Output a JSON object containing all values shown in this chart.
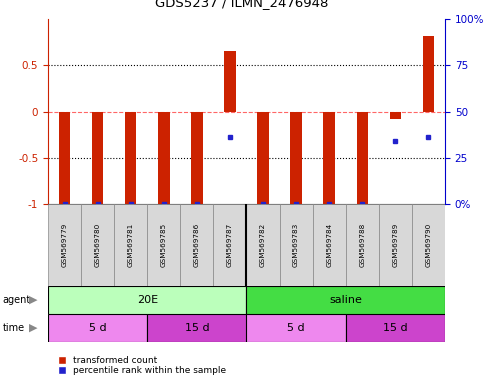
{
  "title": "GDS5237 / ILMN_2476948",
  "samples": [
    "GSM569779",
    "GSM569780",
    "GSM569781",
    "GSM569785",
    "GSM569786",
    "GSM569787",
    "GSM569782",
    "GSM569783",
    "GSM569784",
    "GSM569788",
    "GSM569789",
    "GSM569790"
  ],
  "bar_values": [
    -1.0,
    -1.0,
    -1.0,
    -1.0,
    -1.0,
    0.65,
    -1.0,
    -1.0,
    -1.0,
    -1.0,
    -0.08,
    0.82
  ],
  "blue_values": [
    -1.0,
    -1.0,
    -1.0,
    -1.0,
    -1.0,
    -0.28,
    -1.0,
    -1.0,
    -1.0,
    -1.0,
    -0.32,
    -0.28
  ],
  "bar_color": "#cc2200",
  "blue_color": "#2222cc",
  "ylim_left": [
    -1.0,
    1.0
  ],
  "yticks_left": [
    -1.0,
    -0.5,
    0.0,
    0.5
  ],
  "yticklabels_left": [
    "-1",
    "-0.5",
    "0",
    "0.5"
  ],
  "yticks_right_vals": [
    0,
    25,
    50,
    75,
    100
  ],
  "yticklabels_right": [
    "0%",
    "25",
    "50",
    "75",
    "100%"
  ],
  "agent_groups": [
    {
      "label": "20E",
      "start": 0,
      "end": 6,
      "color": "#bbffbb"
    },
    {
      "label": "saline",
      "start": 6,
      "end": 12,
      "color": "#44dd44"
    }
  ],
  "time_groups": [
    {
      "label": "5 d",
      "start": 0,
      "end": 3,
      "color": "#ee88ee"
    },
    {
      "label": "15 d",
      "start": 3,
      "end": 6,
      "color": "#cc44cc"
    },
    {
      "label": "5 d",
      "start": 6,
      "end": 9,
      "color": "#ee88ee"
    },
    {
      "label": "15 d",
      "start": 9,
      "end": 12,
      "color": "#cc44cc"
    }
  ],
  "legend_red_label": "transformed count",
  "legend_blue_label": "percentile rank within the sample",
  "background_color": "#ffffff"
}
